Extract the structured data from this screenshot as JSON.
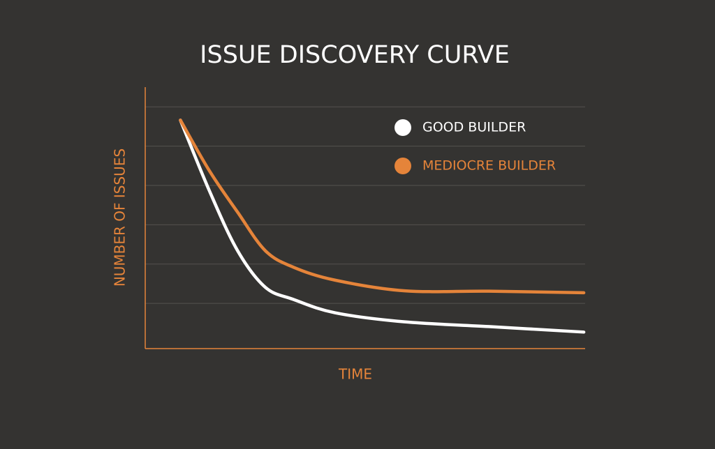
{
  "chart_data": {
    "type": "line",
    "title": "ISSUE DISCOVERY CURVE",
    "x_label": "TIME",
    "y_label": "NUMBER OF ISSUES",
    "x": [
      0.8,
      1.46,
      2.1,
      2.73,
      3.37,
      4.32,
      5.9,
      7.81,
      9.97
    ],
    "series": [
      {
        "name": "GOOD BUILDER",
        "color": "#ffffff",
        "values": [
          5.66,
          3.86,
          2.34,
          1.41,
          1.1,
          0.76,
          0.53,
          0.41,
          0.27
        ]
      },
      {
        "name": "MEDIOCRE BUILDER",
        "color": "#e5843a",
        "values": [
          5.66,
          4.37,
          3.32,
          2.34,
          1.92,
          1.59,
          1.32,
          1.31,
          1.27
        ]
      }
    ],
    "xlim": [
      0,
      10
    ],
    "ylim": [
      -0.15,
      6.5
    ],
    "yticks": [
      1,
      2,
      3,
      4,
      5,
      6
    ],
    "grid": true,
    "axis_color": "#e5843a",
    "legend": "upper right"
  }
}
